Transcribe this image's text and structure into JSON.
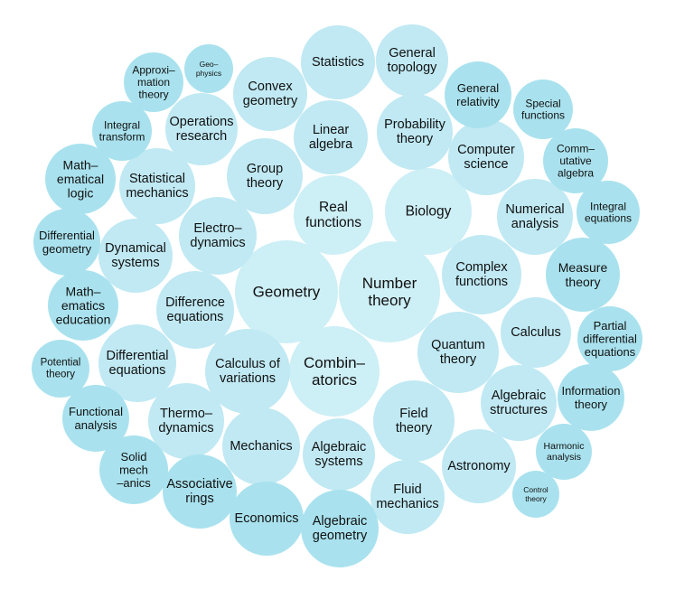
{
  "colors": {
    "background": "#ffffff",
    "text": "#111111",
    "large": "#cdeff6",
    "medium": "#c0e9f3",
    "small": "#a9e2ee"
  },
  "bubbles": [
    {
      "id": "geometry",
      "lines": [
        "Geometry"
      ],
      "tone": "large"
    },
    {
      "id": "number-theory",
      "lines": [
        "Number",
        "theory"
      ],
      "tone": "large"
    },
    {
      "id": "combinatorics",
      "lines": [
        "Combin–",
        "atorics"
      ],
      "tone": "large"
    },
    {
      "id": "real-functions",
      "lines": [
        "Real",
        "functions"
      ],
      "tone": "large"
    },
    {
      "id": "biology",
      "lines": [
        "Biology"
      ],
      "tone": "large"
    },
    {
      "id": "complex-functions",
      "lines": [
        "Complex",
        "functions"
      ],
      "tone": "medium"
    },
    {
      "id": "quantum-theory",
      "lines": [
        "Quantum",
        "theory"
      ],
      "tone": "medium"
    },
    {
      "id": "field-theory",
      "lines": [
        "Field",
        "theory"
      ],
      "tone": "medium"
    },
    {
      "id": "calculus-of-variations",
      "lines": [
        "Calculus of",
        "variations"
      ],
      "tone": "medium"
    },
    {
      "id": "difference-equations",
      "lines": [
        "Difference",
        "equations"
      ],
      "tone": "medium"
    },
    {
      "id": "electrodynamics",
      "lines": [
        "Electro–",
        "dynamics"
      ],
      "tone": "medium"
    },
    {
      "id": "group-theory",
      "lines": [
        "Group",
        "theory"
      ],
      "tone": "medium"
    },
    {
      "id": "linear-algebra",
      "lines": [
        "Linear",
        "algebra"
      ],
      "tone": "medium"
    },
    {
      "id": "probability-theory",
      "lines": [
        "Probability",
        "theory"
      ],
      "tone": "medium"
    },
    {
      "id": "computer-science",
      "lines": [
        "Computer",
        "science"
      ],
      "tone": "medium"
    },
    {
      "id": "numerical-analysis",
      "lines": [
        "Numerical",
        "analysis"
      ],
      "tone": "medium"
    },
    {
      "id": "calculus",
      "lines": [
        "Calculus"
      ],
      "tone": "medium"
    },
    {
      "id": "algebraic-structures",
      "lines": [
        "Algebraic",
        "structures"
      ],
      "tone": "medium"
    },
    {
      "id": "astronomy",
      "lines": [
        "Astronomy"
      ],
      "tone": "medium"
    },
    {
      "id": "fluid-mechanics",
      "lines": [
        "Fluid",
        "mechanics"
      ],
      "tone": "medium"
    },
    {
      "id": "algebraic-systems",
      "lines": [
        "Algebraic",
        "systems"
      ],
      "tone": "medium"
    },
    {
      "id": "mechanics",
      "lines": [
        "Mechanics"
      ],
      "tone": "medium"
    },
    {
      "id": "thermodynamics",
      "lines": [
        "Thermo–",
        "dynamics"
      ],
      "tone": "medium"
    },
    {
      "id": "differential-equations",
      "lines": [
        "Differential",
        "equations"
      ],
      "tone": "medium"
    },
    {
      "id": "dynamical-systems",
      "lines": [
        "Dynamical",
        "systems"
      ],
      "tone": "medium"
    },
    {
      "id": "statistical-mechanics",
      "lines": [
        "Statistical",
        "mechanics"
      ],
      "tone": "medium"
    },
    {
      "id": "operations-research",
      "lines": [
        "Operations",
        "research"
      ],
      "tone": "medium"
    },
    {
      "id": "convex-geometry",
      "lines": [
        "Convex",
        "geometry"
      ],
      "tone": "medium"
    },
    {
      "id": "statistics",
      "lines": [
        "Statistics"
      ],
      "tone": "medium"
    },
    {
      "id": "general-topology",
      "lines": [
        "General",
        "topology"
      ],
      "tone": "medium"
    },
    {
      "id": "general-relativity",
      "lines": [
        "General",
        "relativity"
      ],
      "tone": "small"
    },
    {
      "id": "special-functions",
      "lines": [
        "Special",
        "functions"
      ],
      "tone": "small"
    },
    {
      "id": "commutative-algebra",
      "lines": [
        "Comm–",
        "utative",
        "algebra"
      ],
      "tone": "small"
    },
    {
      "id": "integral-equations",
      "lines": [
        "Integral",
        "equations"
      ],
      "tone": "small"
    },
    {
      "id": "measure-theory",
      "lines": [
        "Measure",
        "theory"
      ],
      "tone": "small"
    },
    {
      "id": "partial-differential-equations",
      "lines": [
        "Partial",
        "differential",
        "equations"
      ],
      "tone": "small"
    },
    {
      "id": "information-theory",
      "lines": [
        "Information",
        "theory"
      ],
      "tone": "small"
    },
    {
      "id": "harmonic-analysis",
      "lines": [
        "Harmonic",
        "analysis"
      ],
      "tone": "small"
    },
    {
      "id": "control-theory",
      "lines": [
        "Control",
        "theory"
      ],
      "tone": "small"
    },
    {
      "id": "algebraic-geometry",
      "lines": [
        "Algebraic",
        "geometry"
      ],
      "tone": "small"
    },
    {
      "id": "economics",
      "lines": [
        "Economics"
      ],
      "tone": "small"
    },
    {
      "id": "associative-rings",
      "lines": [
        "Associative",
        "rings"
      ],
      "tone": "small"
    },
    {
      "id": "solid-mechanics",
      "lines": [
        "Solid",
        "mech",
        "–anics"
      ],
      "tone": "small"
    },
    {
      "id": "functional-analysis",
      "lines": [
        "Functional",
        "analysis"
      ],
      "tone": "small"
    },
    {
      "id": "potential-theory",
      "lines": [
        "Potential",
        "theory"
      ],
      "tone": "small"
    },
    {
      "id": "mathematics-education",
      "lines": [
        "Math–",
        "ematics",
        "education"
      ],
      "tone": "small"
    },
    {
      "id": "differential-geometry",
      "lines": [
        "Differential",
        "geometry"
      ],
      "tone": "small"
    },
    {
      "id": "mathematical-logic",
      "lines": [
        "Math–",
        "ematical",
        "logic"
      ],
      "tone": "small"
    },
    {
      "id": "integral-transform",
      "lines": [
        "Integral",
        "transform"
      ],
      "tone": "small"
    },
    {
      "id": "approximation-theory",
      "lines": [
        "Approxi–",
        "mation",
        "theory"
      ],
      "tone": "small"
    },
    {
      "id": "geophysics",
      "lines": [
        "Geo–",
        "physics"
      ],
      "tone": "small"
    }
  ]
}
